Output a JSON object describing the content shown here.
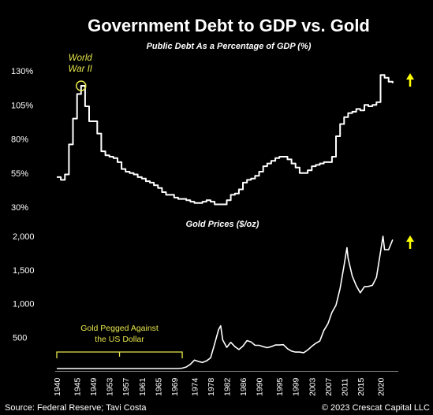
{
  "chart_data": [
    {
      "type": "line",
      "title": "Government Debt to GDP vs. Gold",
      "subtitle": "Public Debt As a Percentage of GDP (%)",
      "ylim": [
        30,
        130
      ],
      "yticks": [
        "130%",
        "105%",
        "80%",
        "55%",
        "30%"
      ],
      "ytick_values": [
        130,
        105,
        80,
        55,
        30
      ],
      "xlim": [
        1940,
        2024
      ],
      "grid": false,
      "line_color": "#ffffff",
      "series": [
        {
          "x": [
            1940,
            1941,
            1942,
            1943,
            1944,
            1945,
            1946,
            1947,
            1948,
            1949,
            1950,
            1951,
            1952,
            1953,
            1954,
            1955,
            1956,
            1957,
            1958,
            1959,
            1960,
            1961,
            1962,
            1963,
            1964,
            1965,
            1966,
            1967,
            1968,
            1969,
            1970,
            1971,
            1972,
            1973,
            1974,
            1975,
            1976,
            1977,
            1978,
            1979,
            1980,
            1981,
            1982,
            1983,
            1984,
            1985,
            1986,
            1987,
            1988,
            1989,
            1990,
            1991,
            1992,
            1993,
            1994,
            1995,
            1996,
            1997,
            1998,
            1999,
            2000,
            2001,
            2002,
            2003,
            2004,
            2005,
            2006,
            2007,
            2008,
            2009,
            2010,
            2011,
            2012,
            2013,
            2014,
            2015,
            2016,
            2017,
            2018,
            2019,
            2020,
            2021,
            2022,
            2023
          ],
          "values": [
            52,
            50,
            54,
            76,
            95,
            113,
            119,
            104,
            93,
            93,
            84,
            71,
            68,
            67,
            66,
            63,
            58,
            56,
            55,
            54,
            52,
            51,
            49,
            48,
            46,
            44,
            41,
            39,
            39,
            37,
            36,
            36,
            35,
            34,
            33,
            33,
            34,
            35,
            34,
            32,
            32,
            32,
            35,
            39,
            40,
            43,
            48,
            50,
            51,
            53,
            56,
            60,
            62,
            64,
            66,
            67,
            67,
            65,
            62,
            59,
            55,
            55,
            57,
            60,
            61,
            62,
            63,
            63,
            67,
            82,
            91,
            96,
            99,
            100,
            102,
            101,
            105,
            104,
            105,
            107,
            127,
            125,
            122,
            121
          ]
        }
      ],
      "annotations": [
        {
          "label": "World War II",
          "x": 1946,
          "y": 119
        }
      ],
      "trend_arrow_color": "#ffff00"
    },
    {
      "type": "line",
      "title": "Gold Prices ($/oz)",
      "ylim": [
        0,
        2000
      ],
      "yticks": [
        "2,000",
        "1,500",
        "1,000",
        "500",
        ""
      ],
      "ytick_values": [
        2000,
        1500,
        1000,
        500,
        0
      ],
      "xlim": [
        1940,
        2024
      ],
      "xticks": [
        "1940",
        "1945",
        "1949",
        "1953",
        "1957",
        "1961",
        "1965",
        "1969",
        "1974",
        "1978",
        "1982",
        "1986",
        "1990",
        "1995",
        "1999",
        "2003",
        "2007",
        "2011",
        "2015",
        "2020"
      ],
      "xtick_values": [
        1940,
        1945,
        1949,
        1953,
        1957,
        1961,
        1965,
        1969,
        1974,
        1978,
        1982,
        1986,
        1990,
        1995,
        1999,
        2003,
        2007,
        2011,
        2015,
        2020
      ],
      "grid": false,
      "line_color": "#ffffff",
      "series": [
        {
          "x": [
            1940,
            1970,
            1971,
            1972,
            1973,
            1974,
            1975,
            1976,
            1977,
            1978,
            1979,
            1980,
            1980.5,
            1981,
            1982,
            1983,
            1984,
            1985,
            1986,
            1987,
            1988,
            1989,
            1990,
            1991,
            1992,
            1993,
            1994,
            1995,
            1996,
            1997,
            1998,
            1999,
            2000,
            2001,
            2002,
            2003,
            2004,
            2005,
            2006,
            2007,
            2008,
            2009,
            2010,
            2011,
            2011.7,
            2012,
            2013,
            2014,
            2015,
            2016,
            2017,
            2018,
            2019,
            2020,
            2020.6,
            2021,
            2022,
            2023
          ],
          "values": [
            35,
            35,
            41,
            58,
            97,
            160,
            140,
            125,
            148,
            193,
            400,
            615,
            670,
            460,
            350,
            425,
            360,
            317,
            368,
            450,
            430,
            380,
            380,
            360,
            345,
            360,
            385,
            385,
            390,
            330,
            295,
            280,
            280,
            270,
            310,
            365,
            410,
            445,
            600,
            700,
            870,
            975,
            1225,
            1570,
            1830,
            1670,
            1410,
            1265,
            1160,
            1250,
            1255,
            1270,
            1390,
            1770,
            2000,
            1800,
            1800,
            1950
          ]
        }
      ],
      "annotations": [
        {
          "label": "Gold Pegged Against the US Dollar",
          "x_start": 1940,
          "x_end": 1971
        }
      ],
      "trend_arrow_color": "#ffff00"
    }
  ],
  "footer": {
    "source": "Source: Federal Reserve; Tavi Costa",
    "credit": "© 2023 Crescat Capital LLC"
  }
}
